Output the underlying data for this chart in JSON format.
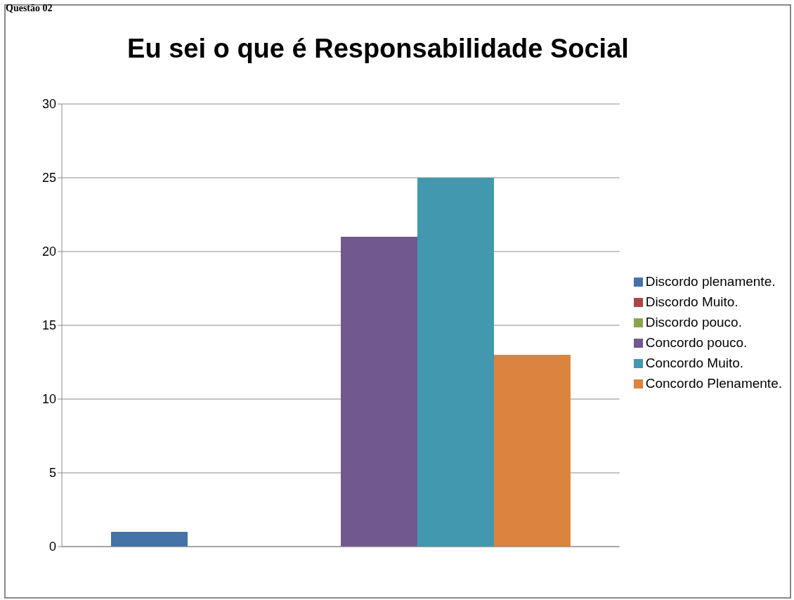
{
  "chart_data": {
    "type": "bar",
    "title": "Eu sei o que é Responsabilidade Social",
    "annotations": [
      "Questão 02"
    ],
    "categories": [
      null
    ],
    "series": [
      {
        "name": "Discordo plenamente.",
        "color": "#4572a7",
        "values": [
          1
        ]
      },
      {
        "name": "Discordo Muito.",
        "color": "#aa4643",
        "values": [
          0
        ]
      },
      {
        "name": "Discordo pouco.",
        "color": "#89a54e",
        "values": [
          0
        ]
      },
      {
        "name": "Concordo pouco.",
        "color": "#71588f",
        "values": [
          21
        ]
      },
      {
        "name": "Concordo Muito.",
        "color": "#4198af",
        "values": [
          25
        ]
      },
      {
        "name": "Concordo Plenamente.",
        "color": "#db843d",
        "values": [
          13
        ]
      }
    ],
    "ylim": [
      0,
      30
    ],
    "yticks": [
      0,
      5,
      10,
      15,
      20,
      25,
      30
    ],
    "grid": "y",
    "legend": "right"
  }
}
